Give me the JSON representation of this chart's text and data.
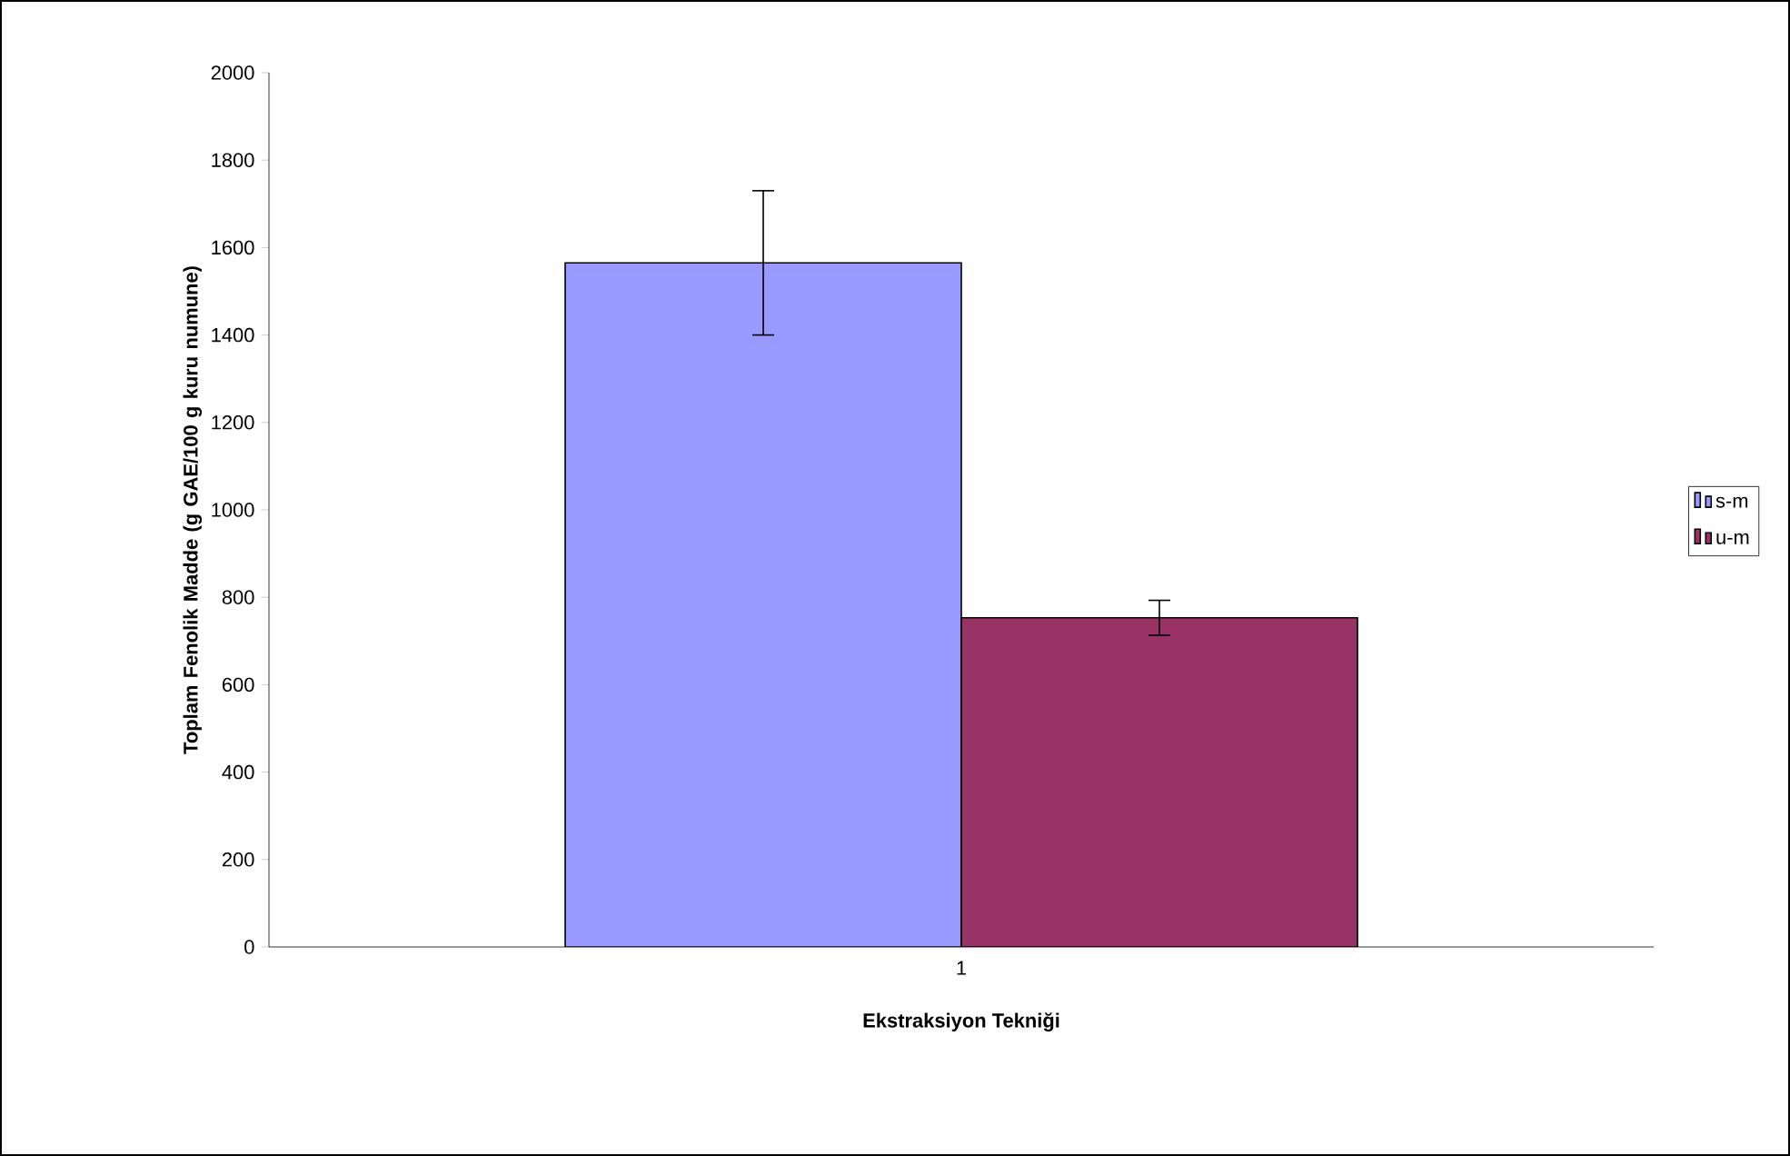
{
  "chart_data": {
    "type": "bar",
    "xlabel": "Ekstraksiyon Tekniği",
    "ylabel": "Toplam Fenolik Madde (g GAE/100 g kuru numune)",
    "categories": [
      "1"
    ],
    "series": [
      {
        "name": "s-m",
        "color": "#9999ff",
        "values": [
          1565
        ],
        "errors": [
          165
        ]
      },
      {
        "name": "u-m",
        "color": "#993366",
        "values": [
          753
        ],
        "errors": [
          40
        ]
      }
    ],
    "ylim": [
      0,
      2000
    ],
    "yticks": [
      0,
      200,
      400,
      600,
      800,
      1000,
      1200,
      1400,
      1600,
      1800,
      2000
    ],
    "grid": false,
    "legend": "right"
  }
}
